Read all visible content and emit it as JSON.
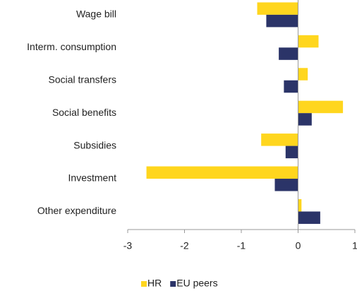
{
  "chart_data": {
    "type": "hbar",
    "categories": [
      "Wage bill",
      "Interm. consumption",
      "Social transfers",
      "Social benefits",
      "Subsidies",
      "Investment",
      "Other expenditure"
    ],
    "series": [
      {
        "name": "HR",
        "color": "#ffd61e",
        "values": [
          -0.72,
          0.36,
          0.17,
          0.79,
          -0.65,
          -2.67,
          0.06
        ]
      },
      {
        "name": "EU peers",
        "color": "#2b3468",
        "values": [
          -0.56,
          -0.34,
          -0.25,
          0.24,
          -0.22,
          -0.41,
          0.39
        ]
      }
    ],
    "xlim": [
      -3,
      1
    ],
    "xticks": [
      -3,
      -2,
      -1,
      0,
      1
    ],
    "legend": "bottom"
  }
}
